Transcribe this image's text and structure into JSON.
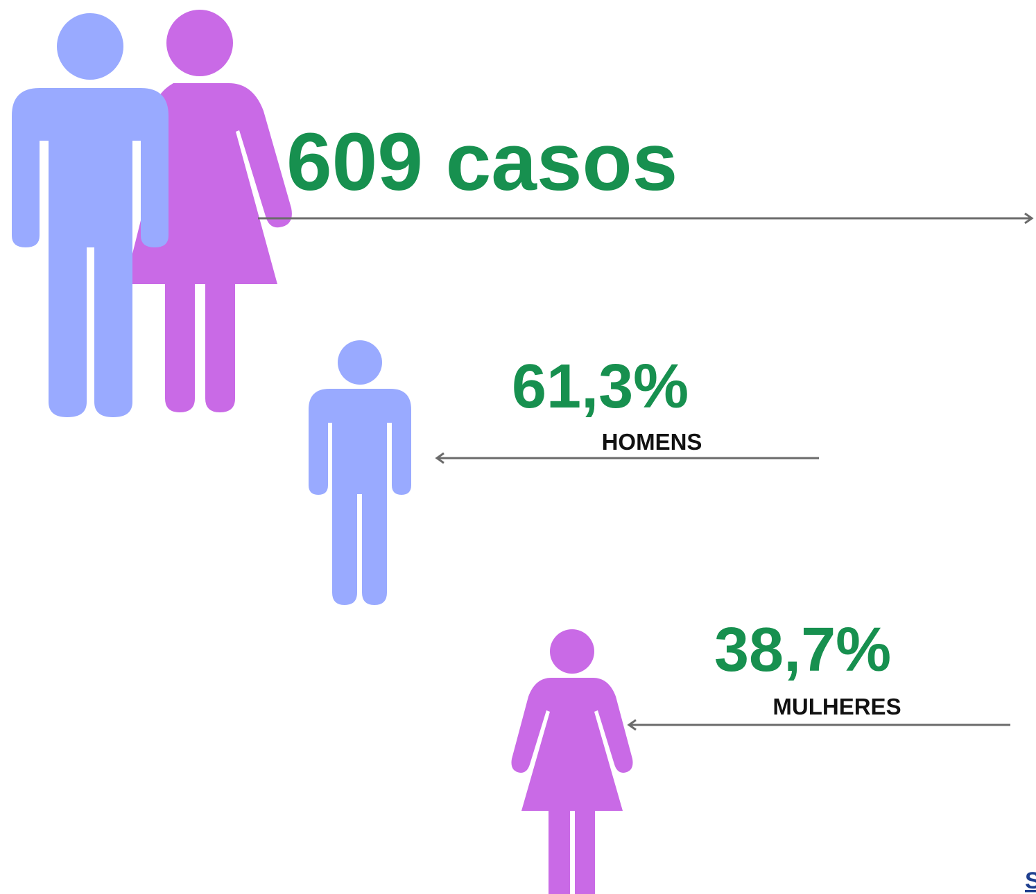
{
  "total": "609 casos",
  "groups": [
    {
      "percent": "61,3%",
      "label": "HOMENS"
    },
    {
      "percent": "38,7%",
      "label": "MULHERES"
    }
  ],
  "footer": "S"
}
